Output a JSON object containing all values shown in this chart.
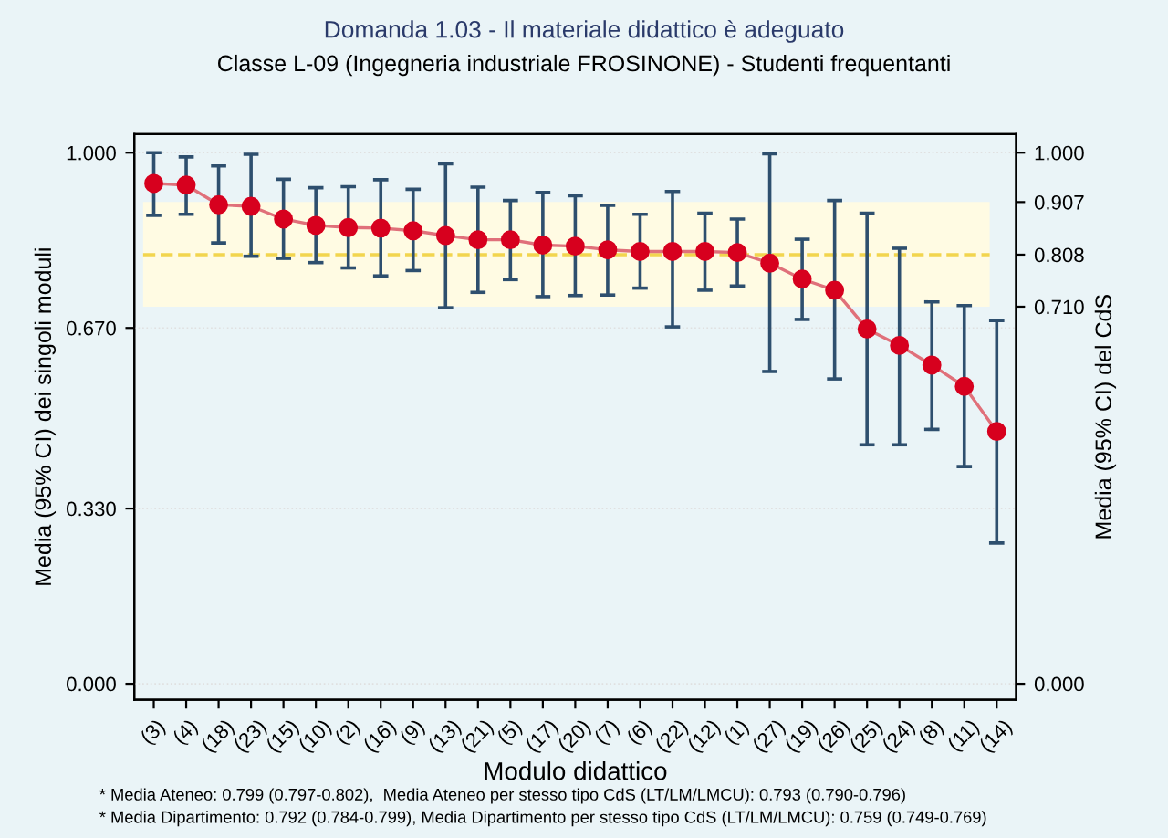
{
  "chart_data": {
    "type": "line",
    "title": "Domanda 1.03 - Il materiale didattico è adeguato",
    "subtitle": "Classe L-09 (Ingegneria industriale FROSINONE) - Studenti frequentanti",
    "xlabel": "Modulo didattico",
    "ylabel": "Media (95% CI) dei singoli moduli",
    "y2label": "Media (95% CI) del CdS",
    "categories": [
      "(3)",
      "(4)",
      "(18)",
      "(23)",
      "(15)",
      "(10)",
      "(2)",
      "(16)",
      "(9)",
      "(13)",
      "(21)",
      "(5)",
      "(17)",
      "(20)",
      "(7)",
      "(6)",
      "(22)",
      "(12)",
      "(1)",
      "(27)",
      "(19)",
      "(26)",
      "(25)",
      "(24)",
      "(8)",
      "(11)",
      "(14)"
    ],
    "series": [
      {
        "color": "#d7001e",
        "marker": "circle",
        "values": [
          0.942,
          0.939,
          0.902,
          0.899,
          0.875,
          0.863,
          0.859,
          0.858,
          0.853,
          0.844,
          0.836,
          0.836,
          0.826,
          0.824,
          0.817,
          0.814,
          0.814,
          0.814,
          0.812,
          0.792,
          0.762,
          0.741,
          0.668,
          0.637,
          0.6,
          0.56,
          0.475
        ],
        "errors": [
          [
            0.882,
            1.0
          ],
          [
            0.884,
            0.992
          ],
          [
            0.83,
            0.975
          ],
          [
            0.805,
            0.997
          ],
          [
            0.801,
            0.95
          ],
          [
            0.793,
            0.934
          ],
          [
            0.783,
            0.936
          ],
          [
            0.768,
            0.949
          ],
          [
            0.778,
            0.931
          ],
          [
            0.708,
            0.979
          ],
          [
            0.737,
            0.935
          ],
          [
            0.761,
            0.91
          ],
          [
            0.729,
            0.925
          ],
          [
            0.731,
            0.919
          ],
          [
            0.732,
            0.901
          ],
          [
            0.745,
            0.884
          ],
          [
            0.672,
            0.927
          ],
          [
            0.741,
            0.886
          ],
          [
            0.749,
            0.875
          ],
          [
            0.588,
            0.998
          ],
          [
            0.686,
            0.837
          ],
          [
            0.574,
            0.91
          ],
          [
            0.45,
            0.886
          ],
          [
            0.45,
            0.82
          ],
          [
            0.479,
            0.719
          ],
          [
            0.409,
            0.712
          ],
          [
            0.265,
            0.684
          ]
        ]
      }
    ],
    "ylim": [
      -0.03,
      1.035
    ],
    "yticks": [
      {
        "value": 0,
        "label": "0.000"
      },
      {
        "value": 0.33,
        "label": "0.330"
      },
      {
        "value": 0.67,
        "label": "0.670"
      },
      {
        "value": 1,
        "label": "1.000"
      }
    ],
    "y2lim": [
      -0.03,
      1.035
    ],
    "y2ticks": [
      {
        "value": 0,
        "label": "0.000"
      },
      {
        "value": 0.71,
        "label": "0.710"
      },
      {
        "value": 0.808,
        "label": "0.808"
      },
      {
        "value": 0.907,
        "label": "0.907"
      },
      {
        "value": 1,
        "label": "1.000"
      }
    ],
    "bands": [
      {
        "axis": "y2",
        "from": 0.71,
        "to": 0.907,
        "color": "#fffbe3"
      }
    ],
    "ref_lines": [
      {
        "axis": "y2",
        "value": 0.808,
        "color": "#f2d54e",
        "line_style": "dashed"
      }
    ],
    "grid": "y",
    "line_style": "solid",
    "annotations": [
      "* Media Ateneo: 0.799 (0.797-0.802),  Media Ateneo per stesso tipo CdS (LT/LM/LMCU): 0.793 (0.790-0.796)",
      "* Media Dipartimento: 0.792 (0.784-0.799), Media Dipartimento per stesso tipo CdS (LT/LM/LMCU): 0.759 (0.749-0.769)"
    ]
  }
}
